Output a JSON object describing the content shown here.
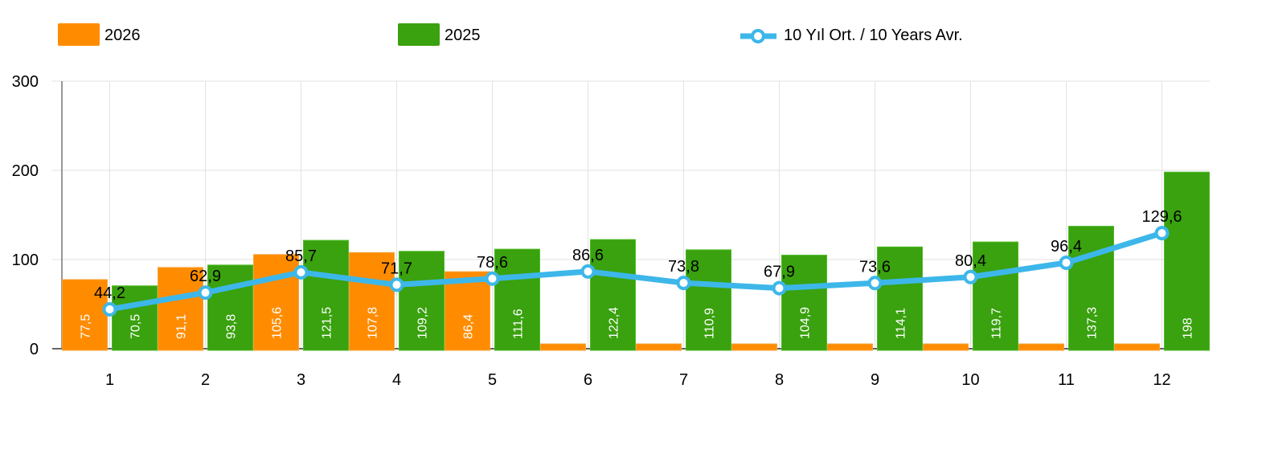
{
  "colors": {
    "s2026": "#FF8C00",
    "s2025": "#3AA10F",
    "avg": "#3DB7E9",
    "grid": "#e2e2e2",
    "axis": "#777777"
  },
  "chart_data": {
    "type": "bar",
    "categories": [
      "1",
      "2",
      "3",
      "4",
      "5",
      "6",
      "7",
      "8",
      "9",
      "10",
      "11",
      "12"
    ],
    "ylim": [
      0,
      300
    ],
    "yticks": [
      "0",
      "100",
      "200",
      "300"
    ],
    "grid": true,
    "legend_position": "top",
    "series": [
      {
        "name": "2026",
        "kind": "bar",
        "values": [
          77.5,
          91.1,
          105.6,
          107.8,
          86.4,
          0,
          0,
          0,
          0,
          0,
          0,
          0
        ],
        "labels": [
          "77,5",
          "91,1",
          "105,6",
          "107,8",
          "86,4",
          "",
          "",
          "",
          "",
          "",
          "",
          ""
        ]
      },
      {
        "name": "2025",
        "kind": "bar",
        "values": [
          70.5,
          93.8,
          121.5,
          109.2,
          111.6,
          122.4,
          110.9,
          104.9,
          114.1,
          119.7,
          137.3,
          198
        ],
        "labels": [
          "70,5",
          "93,8",
          "121,5",
          "109,2",
          "111,6",
          "122,4",
          "110,9",
          "104,9",
          "114,1",
          "119,7",
          "137,3",
          "198"
        ]
      },
      {
        "name": "10 Yıl Ort. / 10 Years Avr.",
        "kind": "line",
        "values": [
          44.2,
          62.9,
          85.7,
          71.7,
          78.6,
          86.6,
          73.8,
          67.9,
          73.6,
          80.4,
          96.4,
          129.6
        ],
        "labels": [
          "44,2",
          "62,9",
          "85,7",
          "71,7",
          "78,6",
          "86,6",
          "73,8",
          "67,9",
          "73,6",
          "80,4",
          "96,4",
          "129,6"
        ]
      }
    ]
  }
}
